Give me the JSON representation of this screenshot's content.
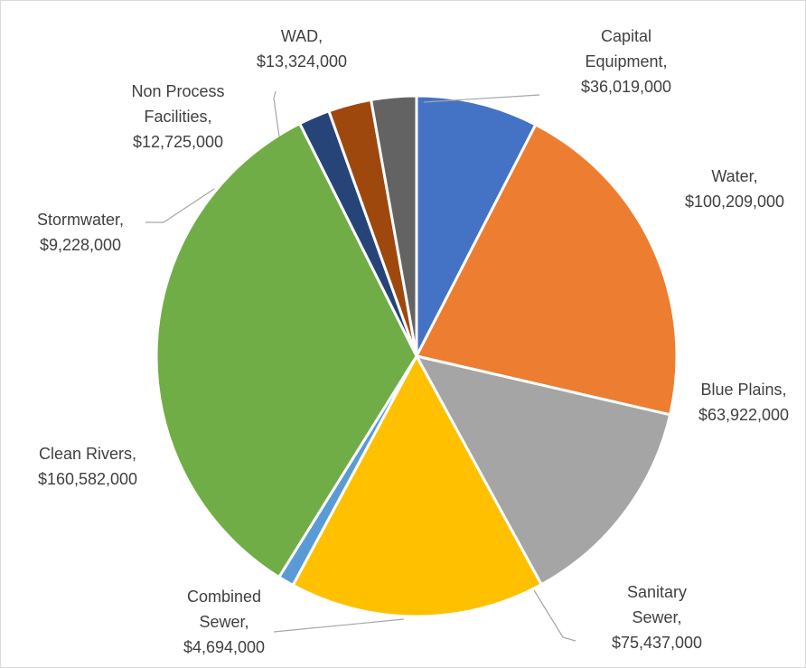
{
  "chart_data": {
    "type": "pie",
    "title": "",
    "start_angle_deg": 0,
    "direction": "clockwise",
    "slices": [
      {
        "name": "Capital Equipment",
        "label_lines": [
          "Capital",
          "Equipment,",
          "$36,019,000"
        ],
        "value": 36019000,
        "display_value": "$36,019,000",
        "color": "#4472C4"
      },
      {
        "name": "Water",
        "label_lines": [
          "Water,",
          "$100,209,000"
        ],
        "value": 100209000,
        "display_value": "$100,209,000",
        "color": "#ED7D31"
      },
      {
        "name": "Blue Plains",
        "label_lines": [
          "Blue Plains,",
          "$63,922,000"
        ],
        "value": 63922000,
        "display_value": "$63,922,000",
        "color": "#A5A5A5"
      },
      {
        "name": "Sanitary Sewer",
        "label_lines": [
          "Sanitary",
          "Sewer,",
          "$75,437,000"
        ],
        "value": 75437000,
        "display_value": "$75,437,000",
        "color": "#FFC000"
      },
      {
        "name": "Combined Sewer",
        "label_lines": [
          "Combined",
          "Sewer,",
          "$4,694,000"
        ],
        "value": 4694000,
        "display_value": "$4,694,000",
        "color": "#5B9BD5"
      },
      {
        "name": "Clean Rivers",
        "label_lines": [
          "Clean Rivers,",
          "$160,582,000"
        ],
        "value": 160582000,
        "display_value": "$160,582,000",
        "color": "#70AD47"
      },
      {
        "name": "Stormwater",
        "label_lines": [
          "Stormwater,",
          "$9,228,000"
        ],
        "value": 9228000,
        "display_value": "$9,228,000",
        "color": "#264478"
      },
      {
        "name": "Non Process Facilities",
        "label_lines": [
          "Non Process",
          "Facilities,",
          "$12,725,000"
        ],
        "value": 12725000,
        "display_value": "$12,725,000",
        "color": "#9E480E"
      },
      {
        "name": "WAD",
        "label_lines": [
          "WAD,",
          "$13,324,000"
        ],
        "value": 13324000,
        "display_value": "$13,324,000",
        "color": "#636363"
      }
    ],
    "legend": "none",
    "data_labels": "outside with leader lines"
  }
}
